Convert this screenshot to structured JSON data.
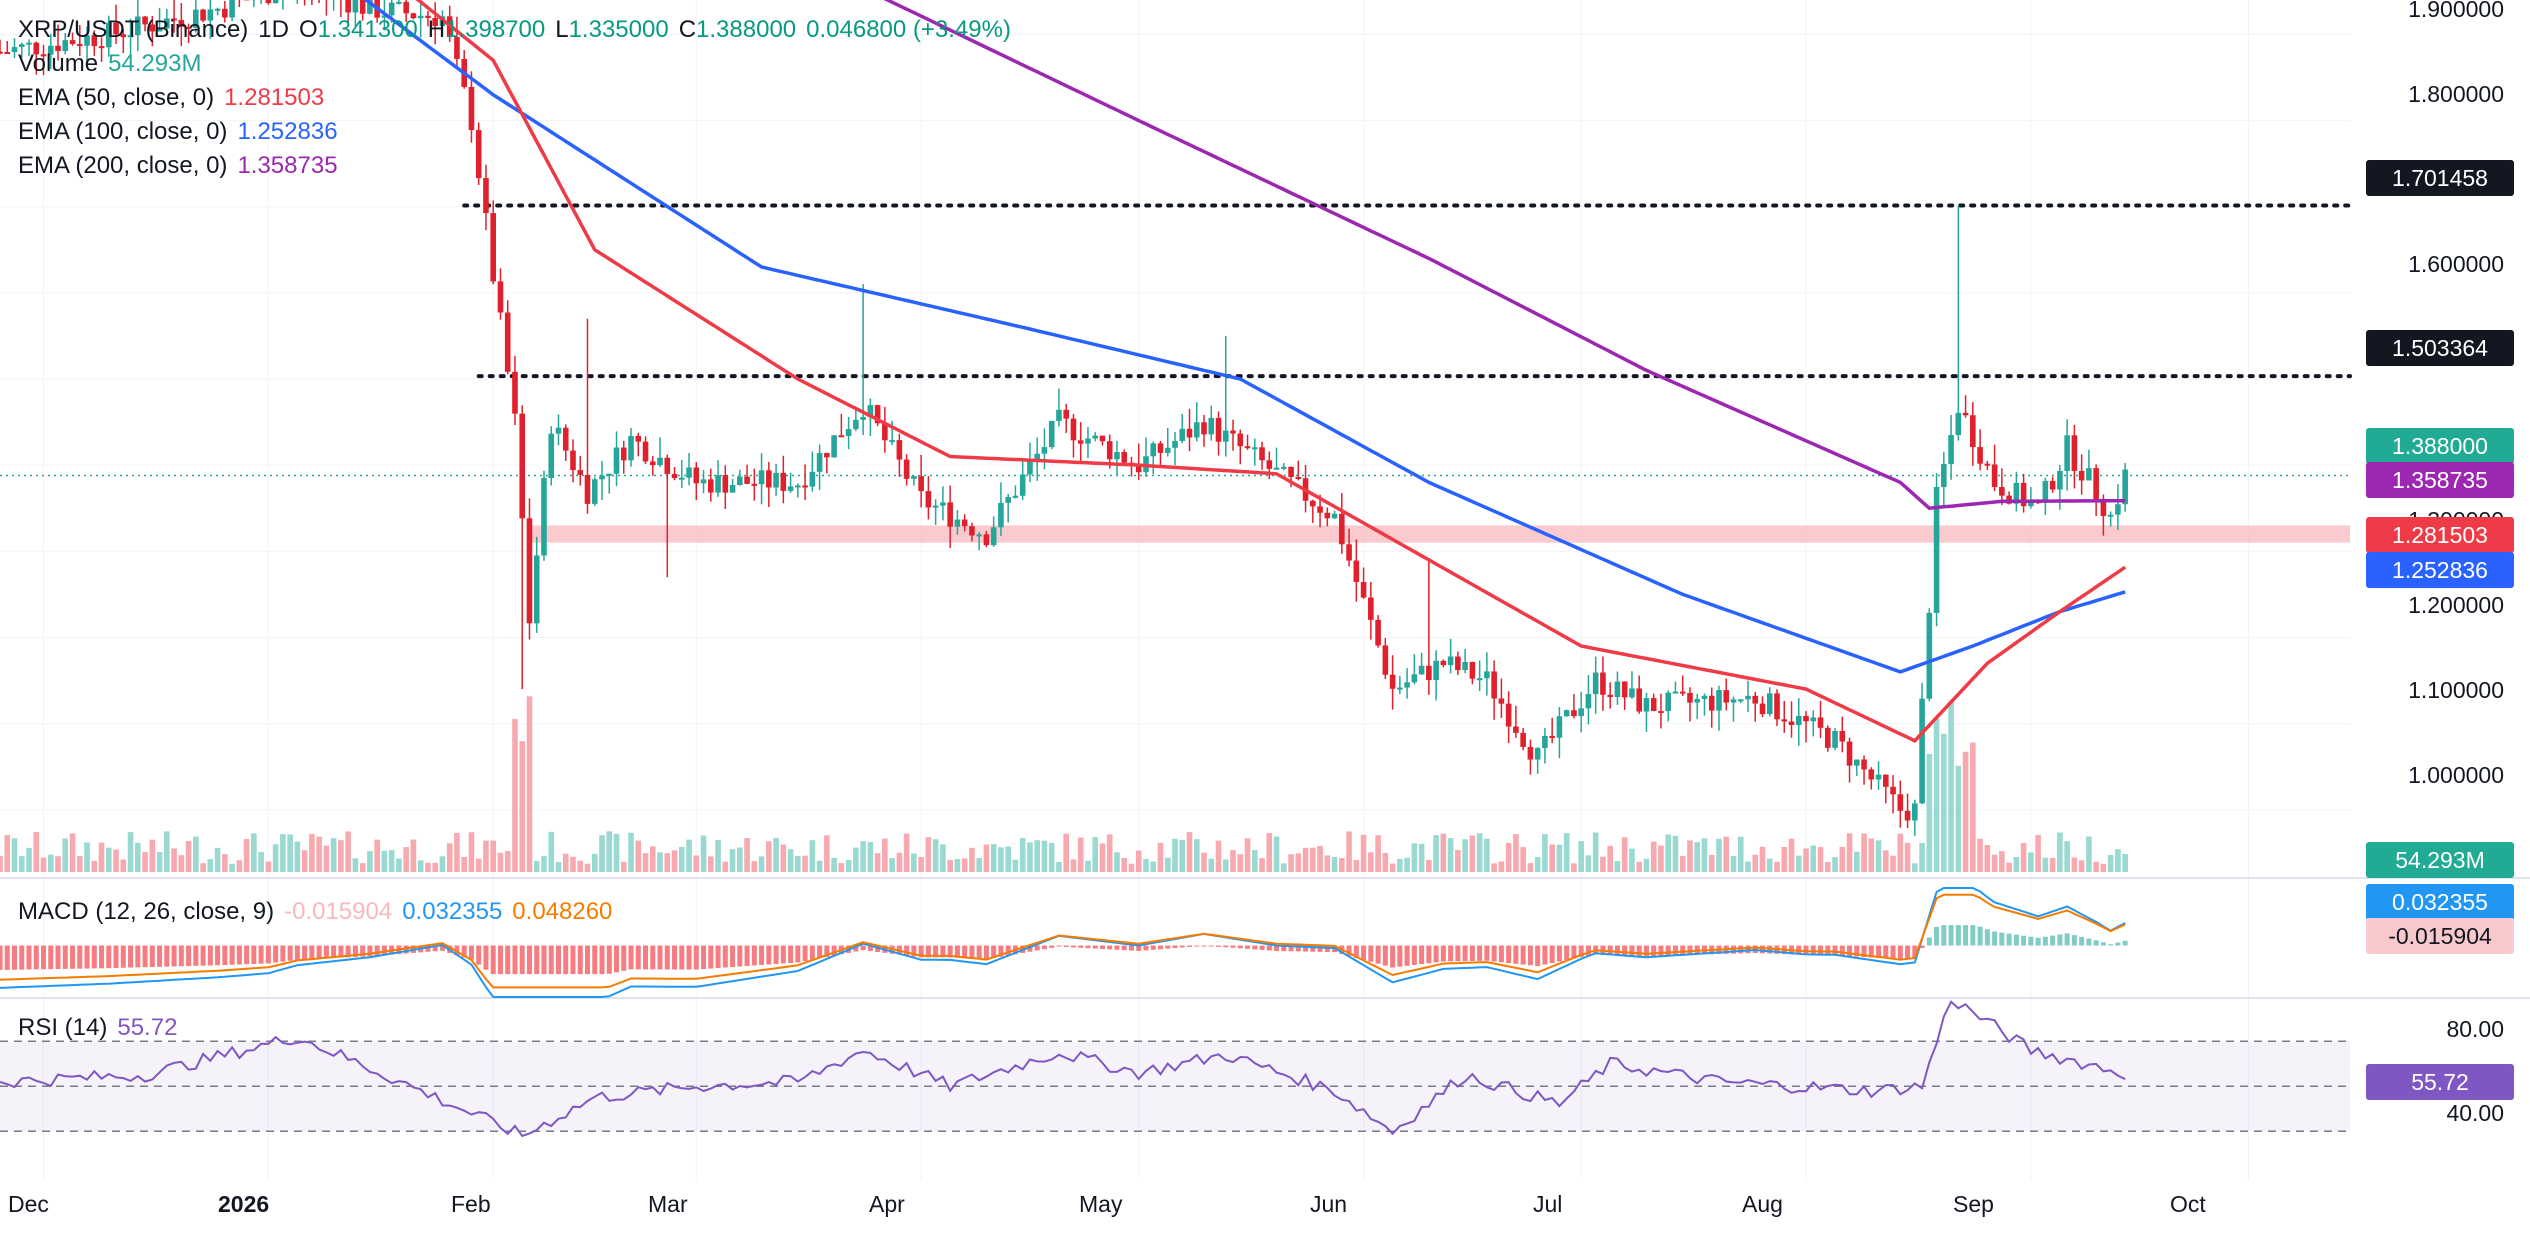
{
  "header": {
    "symbol": "XRP/USDT (Binance)",
    "interval": "1D",
    "open_label": "O",
    "open": "1.341300",
    "high_label": "H",
    "high": "1.398700",
    "low_label": "L",
    "low": "1.335000",
    "close_label": "C",
    "close": "1.388000",
    "change": "0.046800 (+3.49%)"
  },
  "indicators": {
    "volume": {
      "label": "Volume",
      "value": "54.293M"
    },
    "ema50": {
      "label": "EMA (50, close, 0)",
      "value": "1.281503"
    },
    "ema100": {
      "label": "EMA (100, close, 0)",
      "value": "1.252836"
    },
    "ema200": {
      "label": "EMA (200, close, 0)",
      "value": "1.358735"
    },
    "macd": {
      "label": "MACD (12, 26, close, 9)",
      "hist": "-0.015904",
      "macd": "0.032355",
      "signal": "0.048260"
    },
    "rsi": {
      "label": "RSI (14)",
      "value": "55.72"
    }
  },
  "price_axis": [
    "1.900000",
    "1.800000",
    "1.600000",
    "1.200000",
    "1.100000",
    "1.000000"
  ],
  "price_axis_partial": "1.300000",
  "rsi_axis": [
    "80.00",
    "40.00"
  ],
  "time_axis": [
    "Dec",
    "2026",
    "Feb",
    "Mar",
    "Apr",
    "May",
    "Jun",
    "Jul",
    "Aug",
    "Sep",
    "Oct"
  ],
  "price_tags": {
    "resistance_high": "1.701458",
    "resistance_mid": "1.503364",
    "last_price": "1.388000",
    "ema200": "1.358735",
    "ema50": "1.281503",
    "ema100": "1.252836",
    "volume": "54.293M",
    "macd_line": "0.032355",
    "macd_hist": "-0.015904",
    "rsi": "55.72"
  },
  "colors": {
    "up": "#26a69a",
    "down": "#e0202d",
    "ema50": "#ef3b47",
    "ema100": "#2962ff",
    "ema200": "#9c27b0",
    "zone": "#f8b8bd",
    "rsi": "#7e57c2",
    "macd": "#2196f3",
    "signal": "#f57c00"
  },
  "chart_data": {
    "type": "candlestick",
    "x_range": [
      "2025-11-25",
      "2026-10-15"
    ],
    "y_range": [
      0.93,
      1.94
    ],
    "levels": [
      1.701458,
      1.503364
    ],
    "support_zone": [
      1.31,
      1.33
    ],
    "anchors": [
      [
        "2025-11-25",
        1.88
      ],
      [
        "2025-12-10",
        1.9
      ],
      [
        "2025-12-25",
        1.93
      ],
      [
        "2026-01-05",
        1.96
      ],
      [
        "2026-01-15",
        1.93
      ],
      [
        "2026-01-25",
        1.92
      ],
      [
        "2026-01-29",
        1.8
      ],
      [
        "2026-02-01",
        1.62
      ],
      [
        "2026-02-04",
        1.45
      ],
      [
        "2026-02-06",
        1.22
      ],
      [
        "2026-02-09",
        1.45
      ],
      [
        "2026-02-14",
        1.37
      ],
      [
        "2026-02-20",
        1.43
      ],
      [
        "2026-03-01",
        1.38
      ],
      [
        "2026-03-15",
        1.38
      ],
      [
        "2026-03-24",
        1.47
      ],
      [
        "2026-04-01",
        1.36
      ],
      [
        "2026-04-10",
        1.32
      ],
      [
        "2026-04-20",
        1.45
      ],
      [
        "2026-05-01",
        1.4
      ],
      [
        "2026-05-10",
        1.45
      ],
      [
        "2026-05-20",
        1.39
      ],
      [
        "2026-05-28",
        1.34
      ],
      [
        "2026-06-05",
        1.14
      ],
      [
        "2026-06-12",
        1.17
      ],
      [
        "2026-06-18",
        1.15
      ],
      [
        "2026-06-25",
        1.06
      ],
      [
        "2026-07-03",
        1.15
      ],
      [
        "2026-07-10",
        1.12
      ],
      [
        "2026-07-25",
        1.13
      ],
      [
        "2026-08-05",
        1.08
      ],
      [
        "2026-08-14",
        1.0
      ],
      [
        "2026-08-16",
        1.0
      ],
      [
        "2026-08-19",
        1.36
      ],
      [
        "2026-08-22",
        1.47
      ],
      [
        "2026-08-27",
        1.38
      ],
      [
        "2026-09-02",
        1.35
      ],
      [
        "2026-09-06",
        1.42
      ],
      [
        "2026-09-10",
        1.37
      ],
      [
        "2026-09-12",
        1.34
      ],
      [
        "2026-09-14",
        1.388
      ]
    ],
    "spikes": [
      {
        "date": "2026-02-05",
        "low": 1.14
      },
      {
        "date": "2026-02-14",
        "high": 1.57
      },
      {
        "date": "2026-02-25",
        "low": 1.27
      },
      {
        "date": "2026-03-24",
        "high": 1.61
      },
      {
        "date": "2026-05-13",
        "high": 1.55
      },
      {
        "date": "2026-06-10",
        "high": 1.29
      },
      {
        "date": "2026-08-22",
        "high": 1.701458
      }
    ],
    "ema50_anchors": [
      [
        "2026-01-01",
        2.08
      ],
      [
        "2026-02-01",
        1.87
      ],
      [
        "2026-02-15",
        1.65
      ],
      [
        "2026-03-15",
        1.5
      ],
      [
        "2026-04-05",
        1.41
      ],
      [
        "2026-05-01",
        1.4
      ],
      [
        "2026-05-20",
        1.39
      ],
      [
        "2026-06-10",
        1.29
      ],
      [
        "2026-07-01",
        1.19
      ],
      [
        "2026-08-01",
        1.14
      ],
      [
        "2026-08-16",
        1.08
      ],
      [
        "2026-08-26",
        1.17
      ],
      [
        "2026-09-05",
        1.23
      ],
      [
        "2026-09-14",
        1.2815
      ]
    ],
    "ema100_anchors": [
      [
        "2025-12-20",
        2.1
      ],
      [
        "2026-02-01",
        1.83
      ],
      [
        "2026-03-10",
        1.63
      ],
      [
        "2026-04-15",
        1.56
      ],
      [
        "2026-05-15",
        1.5
      ],
      [
        "2026-06-10",
        1.38
      ],
      [
        "2026-07-15",
        1.25
      ],
      [
        "2026-08-14",
        1.16
      ],
      [
        "2026-08-24",
        1.19
      ],
      [
        "2026-09-05",
        1.23
      ],
      [
        "2026-09-14",
        1.2528
      ]
    ],
    "ema200_anchors": [
      [
        "2026-03-15",
        1.99
      ],
      [
        "2026-05-01",
        1.8
      ],
      [
        "2026-06-10",
        1.64
      ],
      [
        "2026-07-10",
        1.51
      ],
      [
        "2026-08-14",
        1.38
      ],
      [
        "2026-08-18",
        1.35
      ],
      [
        "2026-08-28",
        1.358
      ],
      [
        "2026-09-14",
        1.3587
      ]
    ],
    "rsi_anchors": [
      [
        "2025-11-25",
        52
      ],
      [
        "2025-12-15",
        55
      ],
      [
        "2026-01-05",
        72
      ],
      [
        "2026-01-15",
        58
      ],
      [
        "2026-02-05",
        28
      ],
      [
        "2026-02-15",
        45
      ],
      [
        "2026-03-01",
        50
      ],
      [
        "2026-03-15",
        52
      ],
      [
        "2026-03-24",
        66
      ],
      [
        "2026-04-05",
        50
      ],
      [
        "2026-04-20",
        65
      ],
      [
        "2026-05-01",
        56
      ],
      [
        "2026-05-13",
        64
      ],
      [
        "2026-05-28",
        48
      ],
      [
        "2026-06-05",
        30
      ],
      [
        "2026-06-15",
        55
      ],
      [
        "2026-06-28",
        42
      ],
      [
        "2026-07-05",
        60
      ],
      [
        "2026-07-20",
        52
      ],
      [
        "2026-08-10",
        48
      ],
      [
        "2026-08-17",
        50
      ],
      [
        "2026-08-21",
        89
      ],
      [
        "2026-09-01",
        66
      ],
      [
        "2026-09-14",
        55.72
      ]
    ],
    "rsi_range": [
      15,
      95
    ],
    "rsi_bands": [
      30,
      70
    ],
    "volume_range_M": [
      0,
      220
    ],
    "macd_range": [
      -0.09,
      0.1
    ]
  }
}
